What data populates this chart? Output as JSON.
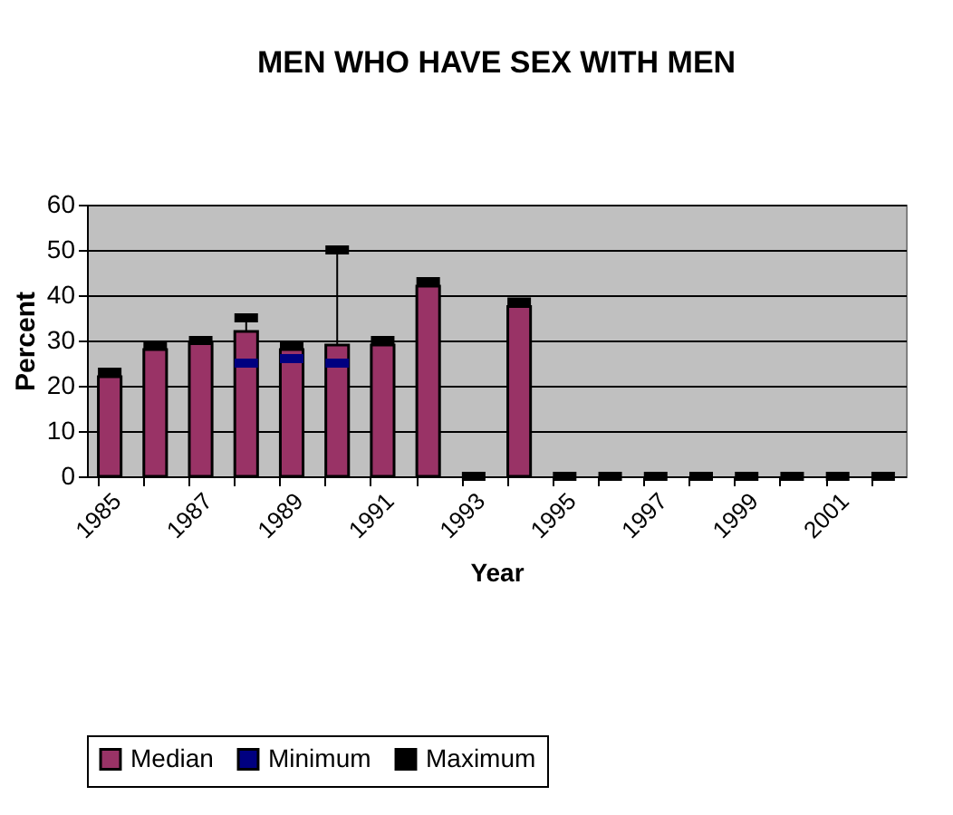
{
  "chart_data": {
    "type": "bar",
    "title": "MEN WHO HAVE SEX WITH MEN",
    "xlabel": "Year",
    "ylabel": "Percent",
    "categories": [
      "1985",
      null,
      "1987",
      null,
      "1989",
      null,
      "1991",
      null,
      "1993",
      null,
      "1995",
      null,
      "1997",
      null,
      "1999",
      null,
      "2001",
      null
    ],
    "series": [
      {
        "name": "Median",
        "type": "bar",
        "color": "#993366",
        "values": [
          22,
          28,
          29.5,
          32,
          28,
          29,
          29,
          42,
          null,
          37.5,
          null,
          null,
          null,
          null,
          null,
          null,
          null,
          null
        ],
        "errors": [
          null,
          null,
          null,
          [
            32,
            35
          ],
          null,
          [
            29,
            50
          ],
          null,
          null,
          null,
          null,
          null,
          null,
          null,
          null,
          null,
          null,
          null,
          null
        ]
      },
      {
        "name": "Minimum",
        "type": "scatter",
        "color": "#000080",
        "values": [
          null,
          null,
          null,
          25,
          26,
          25,
          null,
          null,
          null,
          null,
          null,
          null,
          null,
          null,
          null,
          null,
          null,
          null
        ]
      },
      {
        "name": "Maximum",
        "type": "scatter",
        "color": "#000000",
        "values": [
          23,
          29,
          30,
          35,
          29,
          50,
          30,
          43,
          0,
          38.5,
          0,
          0,
          0,
          0,
          0,
          0,
          0,
          0
        ]
      }
    ],
    "ylim": [
      0,
      60
    ],
    "yticks": [
      0,
      10,
      20,
      30,
      40,
      50,
      60
    ],
    "grid": "y",
    "legend": "bottom"
  }
}
